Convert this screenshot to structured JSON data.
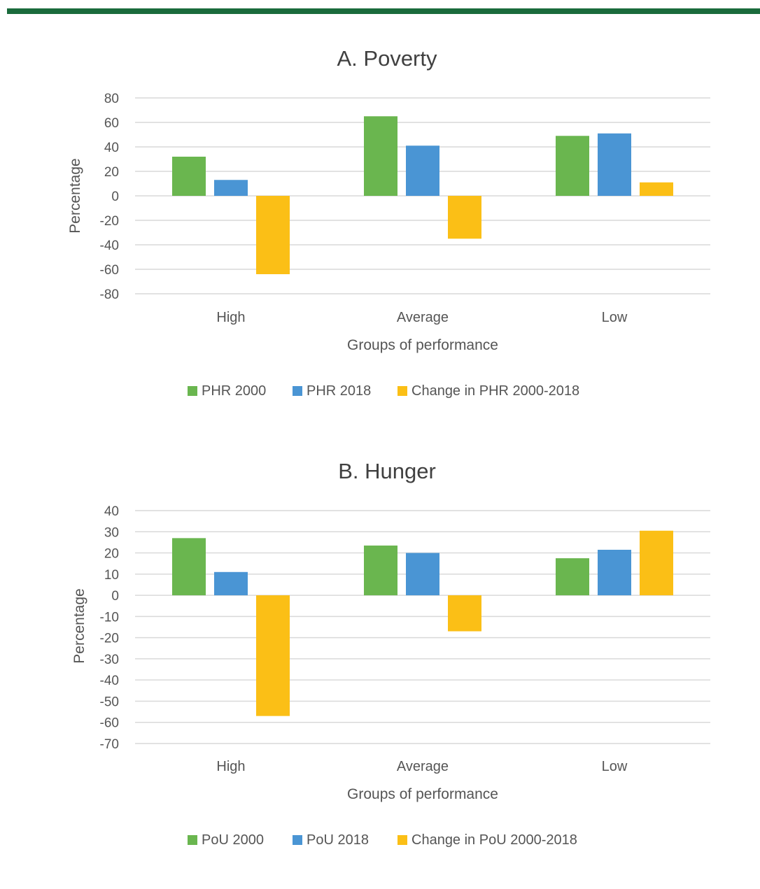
{
  "colors": {
    "top_bar": "#1a6b3c",
    "series": [
      "#6ab64f",
      "#4a95d4",
      "#fbbf16"
    ],
    "grid": "#d9d9d9"
  },
  "chart_data": [
    {
      "type": "bar",
      "title": "A. Poverty",
      "xlabel": "Groups of performance",
      "ylabel": "Percentage",
      "categories": [
        "High",
        "Average",
        "Low"
      ],
      "ylim": [
        -80,
        80
      ],
      "yticks": [
        80,
        60,
        40,
        20,
        0,
        -20,
        -40,
        -60,
        -80
      ],
      "grid": true,
      "legend_position": "bottom",
      "series": [
        {
          "name": "PHR 2000",
          "values": [
            32,
            65,
            49
          ]
        },
        {
          "name": "PHR 2018",
          "values": [
            13,
            41,
            51
          ]
        },
        {
          "name": "Change in PHR 2000-2018",
          "values": [
            -64,
            -35,
            11
          ]
        }
      ]
    },
    {
      "type": "bar",
      "title": "B. Hunger",
      "xlabel": "Groups of performance",
      "ylabel": "Percentage",
      "categories": [
        "High",
        "Average",
        "Low"
      ],
      "ylim": [
        -70,
        40
      ],
      "yticks": [
        40,
        30,
        20,
        10,
        0,
        -10,
        -20,
        -30,
        -40,
        -50,
        -60,
        -70
      ],
      "grid": true,
      "legend_position": "bottom",
      "series": [
        {
          "name": "PoU 2000",
          "values": [
            27,
            23.5,
            17.5
          ]
        },
        {
          "name": "PoU 2018",
          "values": [
            11,
            20,
            21.5
          ]
        },
        {
          "name": "Change in PoU 2000-2018",
          "values": [
            -57,
            -17,
            30.5
          ]
        }
      ]
    }
  ]
}
